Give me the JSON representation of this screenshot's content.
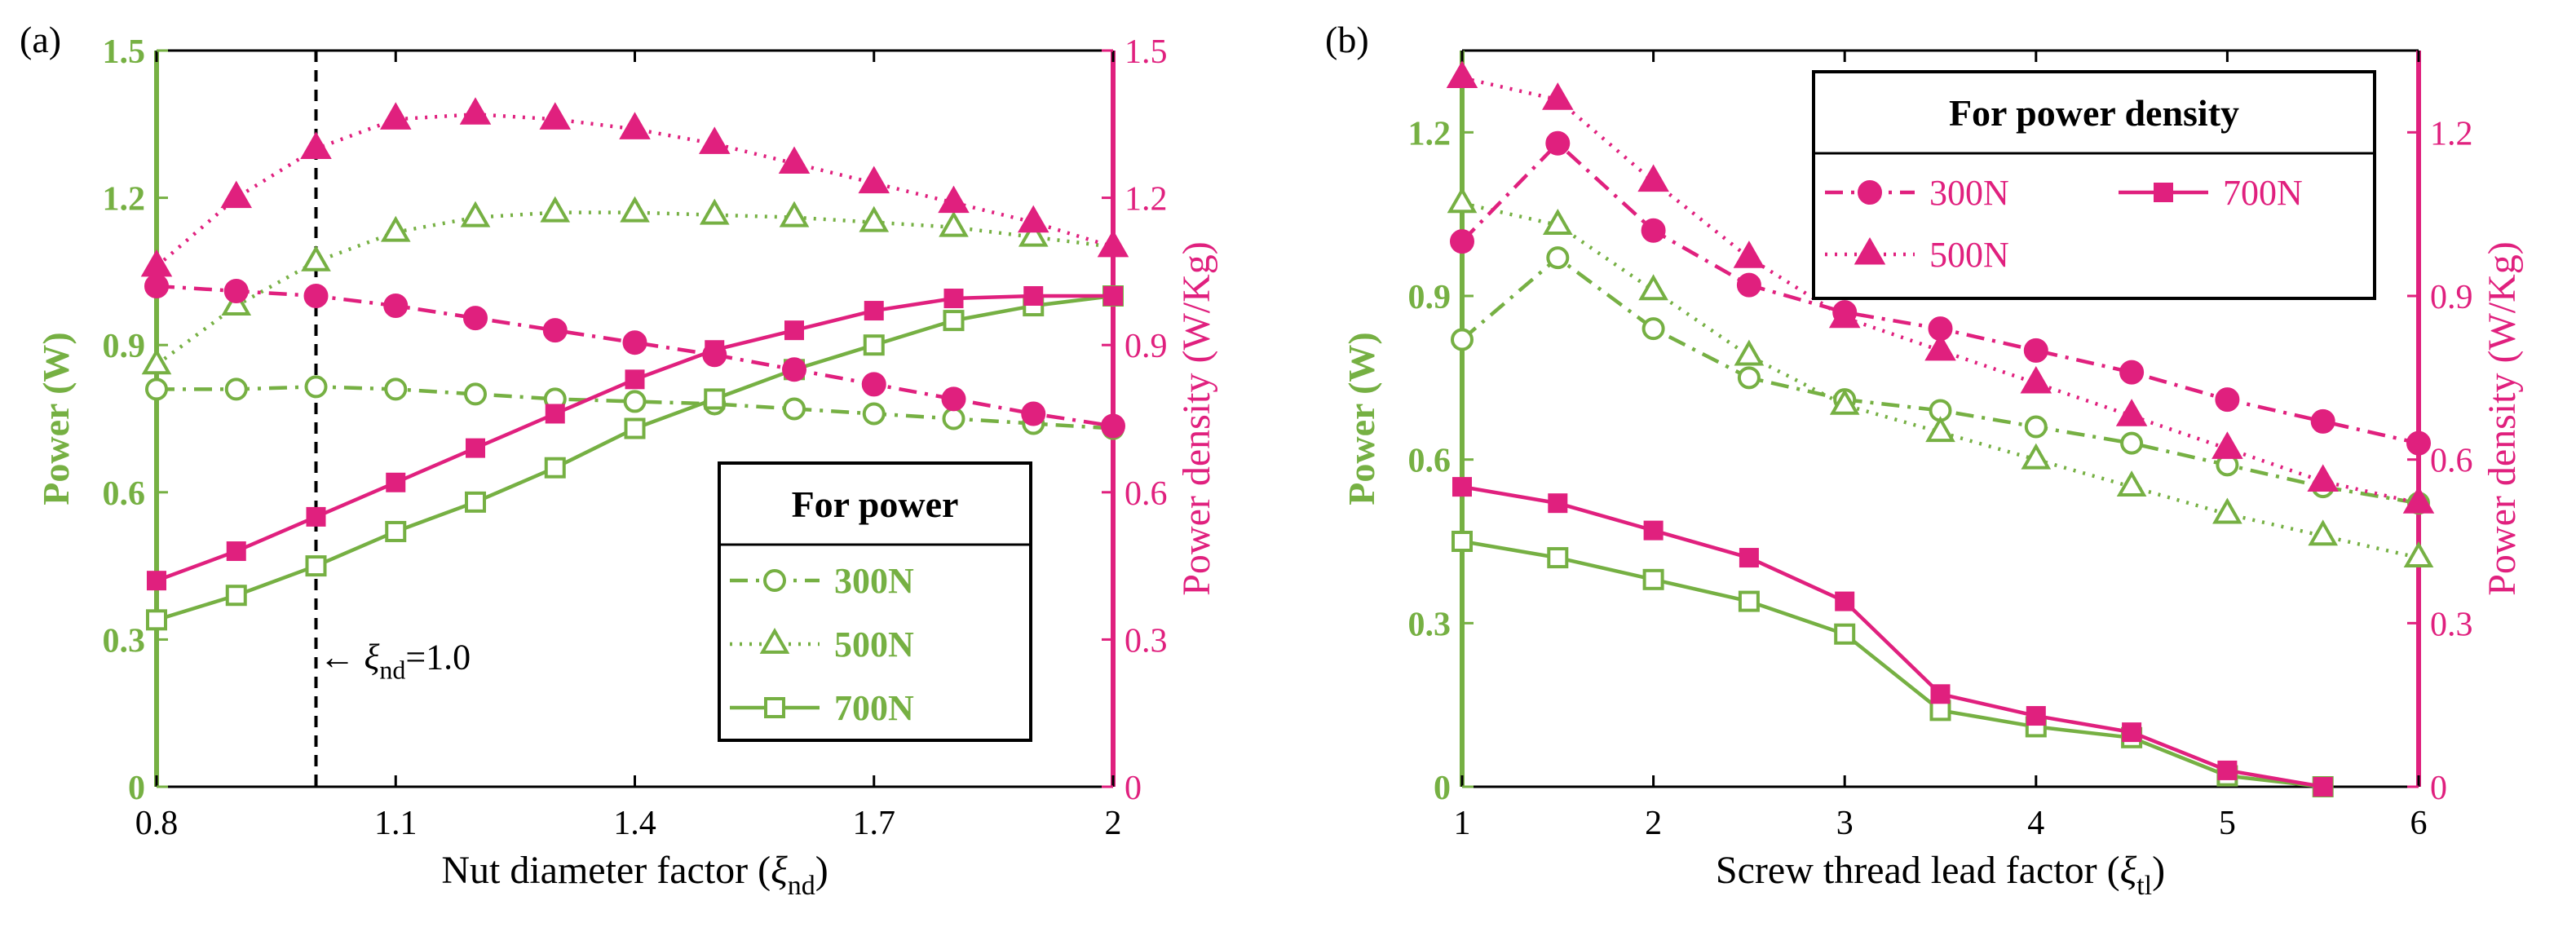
{
  "chart_data": [
    {
      "type": "line",
      "panel_label": "(a)",
      "xlabel_prefix": "Nut diameter factor (",
      "xlabel_symbol": "ξ",
      "xlabel_subscript": "nd",
      "xlabel_suffix": ")",
      "ylabel_left": "Power (W)",
      "ylabel_right": "Power density (W/Kg)",
      "xlim": [
        0.8,
        2.0
      ],
      "ylim_left": [
        0,
        1.5
      ],
      "ylim_right": [
        0,
        1.5
      ],
      "x_ticks": [
        "0.8",
        "1.1",
        "1.4",
        "1.7",
        "2"
      ],
      "y_ticks_left": [
        "0",
        "0.3",
        "0.6",
        "0.9",
        "1.2",
        "1.5"
      ],
      "y_ticks_right": [
        "0",
        "0.3",
        "0.6",
        "0.9",
        "1.2",
        "1.5"
      ],
      "x": [
        0.8,
        0.9,
        1.0,
        1.1,
        1.2,
        1.3,
        1.4,
        1.5,
        1.6,
        1.7,
        1.8,
        1.9,
        2.0
      ],
      "colors": {
        "power": "#76b043",
        "density": "#e0207e"
      },
      "reference_line": {
        "x": 1.0,
        "label_arrow": "←",
        "label_symbol": "ξ",
        "label_subscript": "nd",
        "label_value": "=1.0"
      },
      "legend": {
        "title": "For power",
        "entries": [
          "300N",
          "500N",
          "700N"
        ],
        "position": "lower-right"
      },
      "series": [
        {
          "name": "300N",
          "quantity": "power",
          "axis": "left",
          "marker": "circle-open",
          "dash": "dashdot",
          "values": [
            0.81,
            0.81,
            0.815,
            0.81,
            0.8,
            0.79,
            0.785,
            0.78,
            0.77,
            0.76,
            0.75,
            0.74,
            0.73
          ]
        },
        {
          "name": "500N",
          "quantity": "power",
          "axis": "left",
          "marker": "triangle-open",
          "dash": "dotted",
          "values": [
            0.86,
            0.98,
            1.07,
            1.13,
            1.16,
            1.17,
            1.17,
            1.165,
            1.16,
            1.15,
            1.14,
            1.12,
            1.1
          ]
        },
        {
          "name": "700N",
          "quantity": "power",
          "axis": "left",
          "marker": "square-open",
          "dash": "solid",
          "values": [
            0.34,
            0.39,
            0.45,
            0.52,
            0.58,
            0.65,
            0.73,
            0.79,
            0.85,
            0.9,
            0.95,
            0.98,
            1.0
          ]
        },
        {
          "name": "300N",
          "quantity": "density",
          "axis": "right",
          "marker": "circle-filled",
          "dash": "dashdot",
          "values": [
            1.02,
            1.01,
            1.0,
            0.98,
            0.955,
            0.93,
            0.905,
            0.88,
            0.85,
            0.82,
            0.79,
            0.76,
            0.735
          ]
        },
        {
          "name": "500N",
          "quantity": "density",
          "axis": "right",
          "marker": "triangle-filled",
          "dash": "dotted",
          "values": [
            1.06,
            1.2,
            1.3,
            1.36,
            1.37,
            1.36,
            1.34,
            1.31,
            1.27,
            1.23,
            1.19,
            1.15,
            1.1
          ]
        },
        {
          "name": "700N",
          "quantity": "density",
          "axis": "right",
          "marker": "square-filled",
          "dash": "solid",
          "values": [
            0.42,
            0.48,
            0.55,
            0.62,
            0.69,
            0.76,
            0.83,
            0.89,
            0.93,
            0.97,
            0.995,
            1.0,
            1.0
          ]
        }
      ]
    },
    {
      "type": "line",
      "panel_label": "(b)",
      "xlabel_prefix": "Screw thread lead factor (",
      "xlabel_symbol": "ξ",
      "xlabel_subscript": "tl",
      "xlabel_suffix": ")",
      "ylabel_left": "Power (W)",
      "ylabel_right": "Power density (W/Kg)",
      "xlim": [
        1,
        6
      ],
      "ylim_left": [
        0,
        1.35
      ],
      "ylim_right": [
        0,
        1.35
      ],
      "x_ticks": [
        "1",
        "2",
        "3",
        "4",
        "5",
        "6"
      ],
      "y_ticks_left": [
        "0",
        "0.3",
        "0.6",
        "0.9",
        "1.2"
      ],
      "y_ticks_right": [
        "0",
        "0.3",
        "0.6",
        "0.9",
        "1.2"
      ],
      "x": [
        1,
        1.5,
        2,
        2.5,
        3,
        3.5,
        4,
        4.5,
        5,
        5.5,
        6
      ],
      "colors": {
        "power": "#76b043",
        "density": "#e0207e"
      },
      "legend": {
        "title": "For power density",
        "entries": [
          "300N",
          "700N",
          "500N"
        ],
        "position": "upper-right"
      },
      "series": [
        {
          "name": "300N",
          "quantity": "power",
          "axis": "left",
          "marker": "circle-open",
          "dash": "dashdot",
          "values": [
            0.82,
            0.97,
            0.84,
            0.75,
            0.71,
            0.69,
            0.66,
            0.63,
            0.59,
            0.55,
            0.52
          ]
        },
        {
          "name": "500N",
          "quantity": "power",
          "axis": "left",
          "marker": "triangle-open",
          "dash": "dotted",
          "values": [
            1.07,
            1.03,
            0.91,
            0.79,
            0.7,
            0.65,
            0.6,
            0.55,
            0.5,
            0.46,
            0.42
          ]
        },
        {
          "name": "700N",
          "quantity": "power",
          "axis": "left",
          "marker": "square-open",
          "dash": "solid",
          "values": [
            0.45,
            0.42,
            0.38,
            0.34,
            0.28,
            0.14,
            0.11,
            0.09,
            0.02,
            0.0,
            null
          ]
        },
        {
          "name": "300N",
          "quantity": "density",
          "axis": "right",
          "marker": "circle-filled",
          "dash": "dashdot",
          "values": [
            1.0,
            1.18,
            1.02,
            0.92,
            0.87,
            0.84,
            0.8,
            0.76,
            0.71,
            0.67,
            0.63
          ]
        },
        {
          "name": "500N",
          "quantity": "density",
          "axis": "right",
          "marker": "triangle-filled",
          "dash": "dotted",
          "values": [
            1.3,
            1.26,
            1.11,
            0.97,
            0.86,
            0.8,
            0.74,
            0.68,
            0.62,
            0.56,
            0.52
          ]
        },
        {
          "name": "700N",
          "quantity": "density",
          "axis": "right",
          "marker": "square-filled",
          "dash": "solid",
          "values": [
            0.55,
            0.52,
            0.47,
            0.42,
            0.34,
            0.17,
            0.13,
            0.1,
            0.03,
            0.0,
            null
          ]
        }
      ]
    }
  ]
}
